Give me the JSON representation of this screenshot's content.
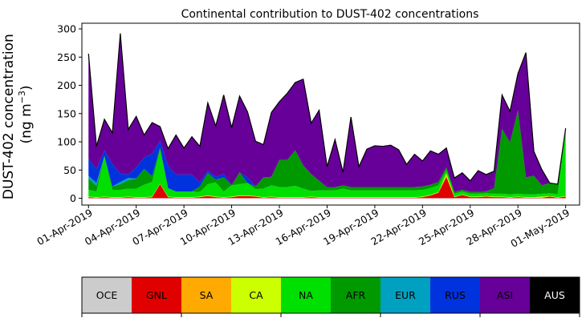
{
  "chart_data": {
    "type": "area",
    "stacked": true,
    "title": "Continental contribution to DUST-402 concentrations",
    "ylabel_line1": "DUST-402 concentration",
    "ylabel_line2": "(ng m",
    "ylabel_sup": "−3",
    "ylabel_close": ")",
    "xlabel": "",
    "ylim": [
      -12,
      310
    ],
    "yticks": [
      0,
      50,
      100,
      150,
      200,
      250,
      300
    ],
    "xrange": [
      "2019-03-31T14:00",
      "2019-05-01T21:00"
    ],
    "xticks": [
      {
        "date": "2019-04-01",
        "label": "01-Apr-2019"
      },
      {
        "date": "2019-04-04",
        "label": "04-Apr-2019"
      },
      {
        "date": "2019-04-07",
        "label": "07-Apr-2019"
      },
      {
        "date": "2019-04-10",
        "label": "10-Apr-2019"
      },
      {
        "date": "2019-04-13",
        "label": "13-Apr-2019"
      },
      {
        "date": "2019-04-16",
        "label": "16-Apr-2019"
      },
      {
        "date": "2019-04-19",
        "label": "19-Apr-2019"
      },
      {
        "date": "2019-04-22",
        "label": "22-Apr-2019"
      },
      {
        "date": "2019-04-25",
        "label": "25-Apr-2019"
      },
      {
        "date": "2019-04-28",
        "label": "28-Apr-2019"
      },
      {
        "date": "2019-05-01",
        "label": "01-May-2019"
      }
    ],
    "x": [
      "2019-04-01",
      "2019-04-01T12:00",
      "2019-04-02",
      "2019-04-02T12:00",
      "2019-04-03",
      "2019-04-03T12:00",
      "2019-04-04",
      "2019-04-04T12:00",
      "2019-04-05",
      "2019-04-05T12:00",
      "2019-04-06",
      "2019-04-06T12:00",
      "2019-04-07",
      "2019-04-07T12:00",
      "2019-04-08",
      "2019-04-08T12:00",
      "2019-04-09",
      "2019-04-09T12:00",
      "2019-04-10",
      "2019-04-10T12:00",
      "2019-04-11",
      "2019-04-11T12:00",
      "2019-04-12",
      "2019-04-12T12:00",
      "2019-04-13",
      "2019-04-13T12:00",
      "2019-04-14",
      "2019-04-14T12:00",
      "2019-04-15",
      "2019-04-15T12:00",
      "2019-04-16",
      "2019-04-16T12:00",
      "2019-04-17",
      "2019-04-17T12:00",
      "2019-04-18",
      "2019-04-18T12:00",
      "2019-04-19",
      "2019-04-19T12:00",
      "2019-04-20",
      "2019-04-20T12:00",
      "2019-04-21",
      "2019-04-21T12:00",
      "2019-04-22",
      "2019-04-22T12:00",
      "2019-04-23",
      "2019-04-23T12:00",
      "2019-04-24",
      "2019-04-24T12:00",
      "2019-04-25",
      "2019-04-25T12:00",
      "2019-04-26",
      "2019-04-26T12:00",
      "2019-04-27",
      "2019-04-27T12:00",
      "2019-04-28",
      "2019-04-28T12:00",
      "2019-04-29",
      "2019-04-29T12:00",
      "2019-04-30",
      "2019-04-30T12:00",
      "2019-05-01"
    ],
    "series": [
      {
        "name": "OCE",
        "color": "#cccccc",
        "values": [
          0,
          0,
          0,
          0,
          0,
          0,
          0,
          0,
          0,
          0,
          0,
          0,
          0,
          0,
          0,
          0,
          0,
          0,
          0,
          0,
          0,
          0,
          0,
          0,
          0,
          0,
          0,
          0,
          0,
          0,
          0,
          0,
          0,
          0,
          0,
          0,
          0,
          0,
          0,
          0,
          0,
          0,
          0,
          0,
          0,
          0,
          0,
          0,
          0,
          0,
          0,
          0,
          0,
          0,
          0,
          0,
          0,
          0,
          0,
          0,
          0
        ]
      },
      {
        "name": "GNL",
        "color": "#e00000",
        "values": [
          2,
          1,
          2,
          1,
          1,
          2,
          1,
          1,
          2,
          25,
          2,
          1,
          1,
          1,
          2,
          4,
          2,
          1,
          2,
          4,
          4,
          3,
          1,
          2,
          1,
          1,
          1,
          1,
          2,
          1,
          1,
          1,
          1,
          1,
          1,
          1,
          1,
          1,
          1,
          1,
          1,
          1,
          2,
          5,
          10,
          38,
          2,
          6,
          2,
          2,
          3,
          2,
          2,
          1,
          2,
          1,
          1,
          1,
          3,
          1,
          3
        ]
      },
      {
        "name": "SA",
        "color": "#ffaa00",
        "values": [
          0,
          0,
          0,
          0,
          0,
          0,
          0,
          0,
          0,
          0,
          0,
          0,
          0,
          0,
          0,
          0,
          0,
          0,
          0,
          0,
          0,
          0,
          0,
          0,
          0,
          0,
          0,
          0,
          0,
          0,
          0,
          0,
          0,
          0,
          0,
          0,
          0,
          0,
          0,
          0,
          0,
          0,
          0,
          0,
          0,
          0,
          0,
          0,
          0,
          0,
          0,
          0,
          0,
          0,
          0,
          0,
          0,
          0,
          0,
          0,
          0
        ]
      },
      {
        "name": "CA",
        "color": "#ccff00",
        "values": [
          1,
          1,
          1,
          1,
          1,
          1,
          1,
          1,
          1,
          1,
          1,
          1,
          1,
          1,
          1,
          1,
          1,
          1,
          1,
          1,
          1,
          1,
          1,
          1,
          1,
          1,
          1,
          1,
          1,
          1,
          1,
          1,
          1,
          1,
          1,
          1,
          1,
          1,
          1,
          1,
          1,
          1,
          1,
          1,
          1,
          6,
          1,
          1,
          1,
          1,
          1,
          1,
          1,
          1,
          1,
          1,
          1,
          2,
          1,
          1,
          1
        ]
      },
      {
        "name": "NA",
        "color": "#00e000",
        "values": [
          12,
          10,
          70,
          13,
          13,
          14,
          15,
          22,
          26,
          60,
          15,
          10,
          10,
          10,
          8,
          20,
          25,
          10,
          20,
          20,
          22,
          12,
          15,
          20,
          18,
          18,
          20,
          15,
          10,
          12,
          12,
          12,
          15,
          12,
          12,
          12,
          12,
          12,
          12,
          12,
          12,
          12,
          12,
          12,
          12,
          6,
          5,
          5,
          5,
          5,
          5,
          5,
          5,
          5,
          5,
          5,
          5,
          5,
          5,
          5,
          120
        ]
      },
      {
        "name": "AFR",
        "color": "#009900",
        "values": [
          20,
          10,
          2,
          6,
          10,
          15,
          18,
          28,
          10,
          4,
          0,
          0,
          0,
          0,
          10,
          20,
          5,
          25,
          0,
          21,
          0,
          5,
          20,
          15,
          48,
          48,
          63,
          41,
          30,
          17,
          6,
          6,
          6,
          6,
          6,
          6,
          6,
          6,
          6,
          6,
          6,
          6,
          6,
          6,
          6,
          5,
          3,
          3,
          3,
          3,
          3,
          10,
          115,
          92,
          148,
          30,
          33,
          15,
          18,
          18,
          0
        ]
      },
      {
        "name": "EUR",
        "color": "#00a0c0",
        "values": [
          5,
          5,
          0,
          0,
          4,
          4,
          0,
          0,
          0,
          0,
          0,
          0,
          0,
          0,
          0,
          0,
          0,
          0,
          0,
          0,
          0,
          0,
          0,
          0,
          0,
          0,
          0,
          0,
          0,
          0,
          0,
          0,
          0,
          0,
          0,
          0,
          0,
          0,
          0,
          0,
          0,
          0,
          0,
          0,
          0,
          0,
          0,
          0,
          0,
          0,
          0,
          0,
          0,
          0,
          0,
          0,
          0,
          0,
          0,
          0,
          0
        ]
      },
      {
        "name": "RUS",
        "color": "#0033dd",
        "values": [
          30,
          25,
          10,
          40,
          15,
          6,
          20,
          20,
          40,
          12,
          40,
          30,
          30,
          30,
          7,
          4,
          5,
          6,
          0,
          0,
          10,
          0,
          0,
          0,
          0,
          0,
          0,
          0,
          0,
          0,
          0,
          0,
          0,
          0,
          0,
          0,
          0,
          0,
          0,
          0,
          0,
          0,
          0,
          0,
          0,
          0,
          0,
          0,
          0,
          0,
          0,
          0,
          0,
          0,
          0,
          0,
          0,
          0,
          0,
          0,
          0
        ]
      },
      {
        "name": "ASI",
        "color": "#660099",
        "values": [
          186,
          40,
          55,
          55,
          248,
          80,
          90,
          40,
          55,
          25,
          30,
          70,
          47,
          67,
          64,
          120,
          90,
          140,
          102,
          135,
          116,
          80,
          58,
          114,
          103,
          118,
          120,
          153,
          90,
          125,
          36,
          84,
          23,
          124,
          36,
          67,
          73,
          72,
          74,
          66,
          40,
          58,
          45,
          60,
          49,
          34,
          25,
          30,
          20,
          38,
          30,
          30,
          60,
          55,
          65,
          221,
          43,
          28,
          0,
          0,
          0
        ]
      },
      {
        "name": "AUS",
        "color": "#000000",
        "values": [
          0,
          0,
          0,
          0,
          0,
          0,
          0,
          0,
          0,
          0,
          0,
          0,
          0,
          0,
          0,
          0,
          0,
          0,
          0,
          0,
          0,
          0,
          0,
          0,
          0,
          0,
          0,
          0,
          0,
          0,
          0,
          0,
          0,
          0,
          0,
          0,
          0,
          0,
          0,
          0,
          0,
          0,
          0,
          0,
          0,
          0,
          0,
          0,
          0,
          0,
          0,
          0,
          0,
          0,
          0,
          0,
          0,
          0,
          0,
          0,
          0
        ]
      }
    ]
  },
  "legend": {
    "items": [
      {
        "label": "OCE",
        "color": "#cccccc"
      },
      {
        "label": "GNL",
        "color": "#e00000"
      },
      {
        "label": "SA",
        "color": "#ffaa00"
      },
      {
        "label": "CA",
        "color": "#ccff00"
      },
      {
        "label": "NA",
        "color": "#00e000"
      },
      {
        "label": "AFR",
        "color": "#009900"
      },
      {
        "label": "EUR",
        "color": "#00a0c0"
      },
      {
        "label": "RUS",
        "color": "#0033dd"
      },
      {
        "label": "ASI",
        "color": "#660099"
      },
      {
        "label": "AUS",
        "color": "#000000",
        "text_color": "#ffffff"
      }
    ]
  }
}
